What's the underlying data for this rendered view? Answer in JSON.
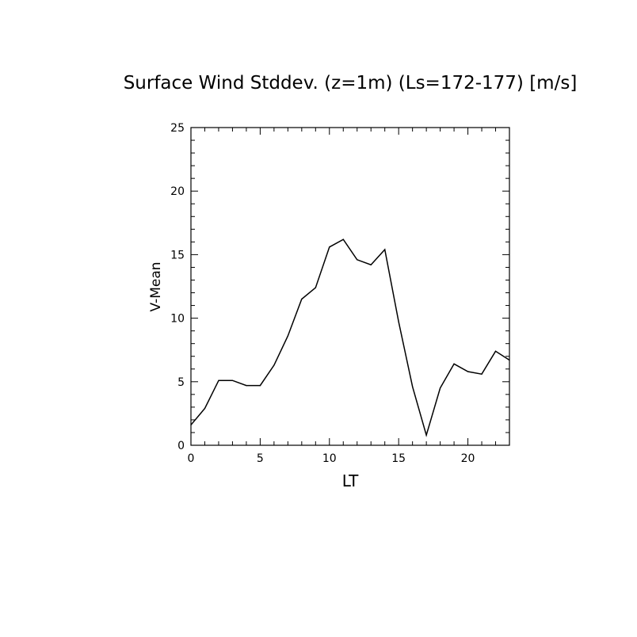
{
  "chart_data": {
    "type": "line",
    "title": "Surface Wind Stddev. (z=1m) (Ls=172-177) [m/s]",
    "xlabel": "LT",
    "ylabel": "V-Mean",
    "xlim": [
      0,
      23
    ],
    "ylim": [
      0,
      25
    ],
    "x_ticks": [
      0,
      5,
      10,
      15,
      20
    ],
    "y_ticks": [
      0,
      5,
      10,
      15,
      20,
      25
    ],
    "grid": false,
    "series": [
      {
        "x": [
          0,
          1,
          2,
          3,
          4,
          5,
          6,
          7,
          8,
          9,
          10,
          11,
          12,
          13,
          14,
          15,
          16,
          17,
          18,
          19,
          20,
          21,
          22,
          23
        ],
        "values": [
          1.6,
          2.9,
          5.1,
          5.1,
          4.7,
          4.7,
          6.3,
          8.6,
          11.5,
          12.4,
          15.6,
          16.2,
          14.6,
          14.2,
          15.4,
          9.7,
          4.6,
          0.8,
          4.5,
          6.4,
          5.8,
          5.6,
          7.4,
          6.7
        ],
        "color": "#000000"
      }
    ]
  }
}
